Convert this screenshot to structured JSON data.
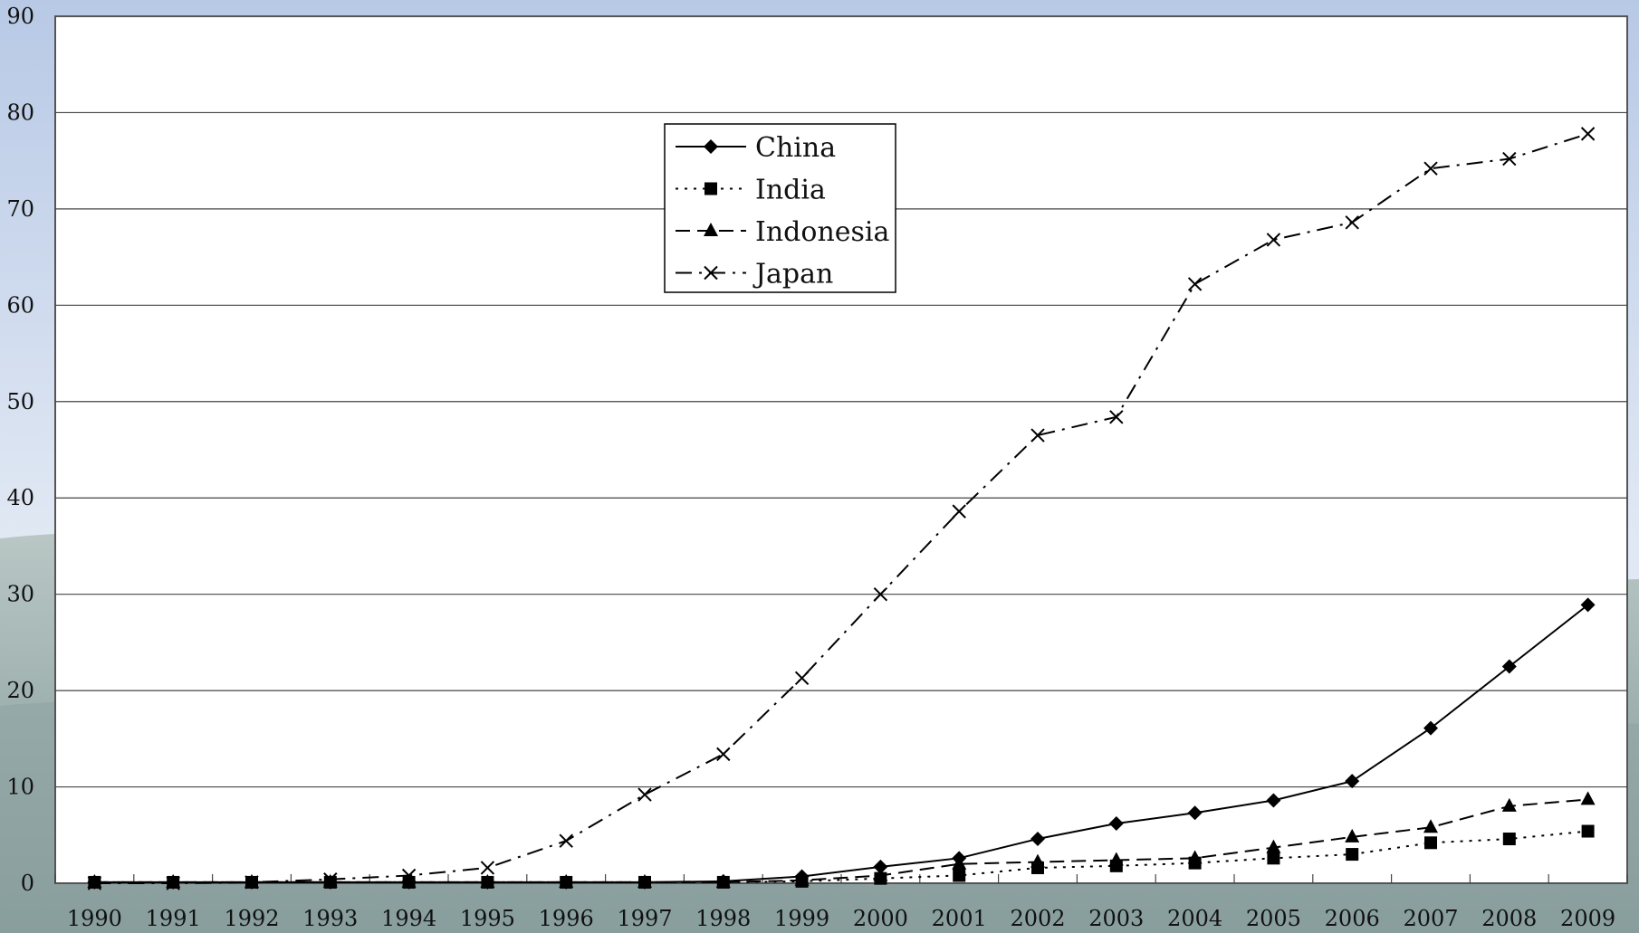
{
  "chart_data": {
    "type": "line",
    "title": "",
    "xlabel": "",
    "ylabel": "",
    "x": [
      "1990",
      "1991",
      "1992",
      "1993",
      "1994",
      "1995",
      "1996",
      "1997",
      "1998",
      "1999",
      "2000",
      "2001",
      "2002",
      "2003",
      "2004",
      "2005",
      "2006",
      "2007",
      "2008",
      "2009"
    ],
    "ylim": [
      0,
      90
    ],
    "yticks": [
      "0",
      "10",
      "20",
      "30",
      "40",
      "50",
      "60",
      "70",
      "80",
      "90"
    ],
    "grid": "horizontal",
    "legend_position": "top-center",
    "series": [
      {
        "name": "China",
        "marker": "diamond",
        "dash": "solid",
        "values": [
          0.1,
          0.1,
          0.1,
          0.1,
          0.1,
          0.1,
          0.1,
          0.1,
          0.2,
          0.7,
          1.7,
          2.6,
          4.6,
          6.2,
          7.3,
          8.6,
          10.6,
          16.1,
          22.5,
          28.9
        ]
      },
      {
        "name": "India",
        "marker": "square",
        "dash": "dotted",
        "values": [
          0.1,
          0.1,
          0.1,
          0.1,
          0.1,
          0.1,
          0.1,
          0.1,
          0.1,
          0.2,
          0.5,
          0.8,
          1.6,
          1.8,
          2.1,
          2.6,
          3.0,
          4.2,
          4.6,
          5.4
        ]
      },
      {
        "name": "Indonesia",
        "marker": "triangle",
        "dash": "dashed",
        "values": [
          0.1,
          0.1,
          0.1,
          0.1,
          0.1,
          0.1,
          0.1,
          0.1,
          0.1,
          0.3,
          0.8,
          2.0,
          2.2,
          2.4,
          2.6,
          3.7,
          4.8,
          5.8,
          8.0,
          8.7
        ]
      },
      {
        "name": "Japan",
        "marker": "x",
        "dash": "dashdot",
        "values": [
          0.0,
          0.0,
          0.1,
          0.4,
          0.8,
          1.6,
          4.4,
          9.2,
          13.4,
          21.3,
          30.0,
          38.6,
          46.5,
          48.4,
          62.2,
          66.8,
          68.6,
          74.2,
          75.2,
          77.8
        ]
      }
    ]
  }
}
